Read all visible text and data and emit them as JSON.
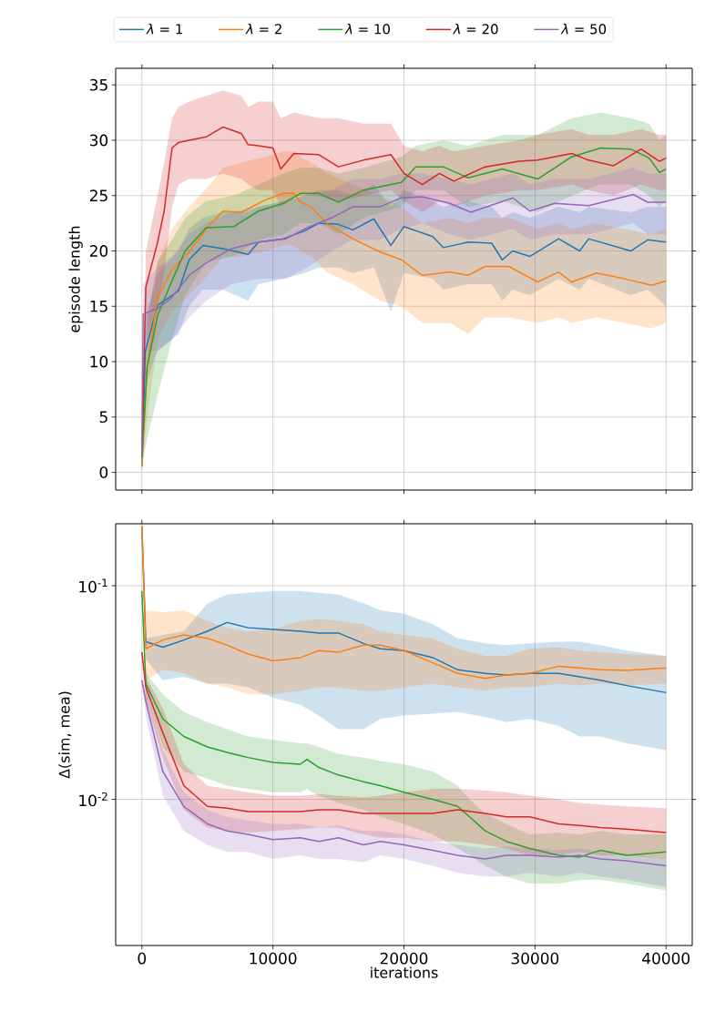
{
  "chart_data": [
    {
      "type": "line",
      "ylabel": "episode length",
      "xlim": [
        -2000,
        42000
      ],
      "ylim": [
        -1.6,
        36.5
      ],
      "xticks": [
        0,
        10000,
        20000,
        30000,
        40000
      ],
      "yticks": [
        0,
        5,
        10,
        15,
        20,
        25,
        30,
        35
      ],
      "tick_labels": "y",
      "grid": true,
      "legend": "top",
      "series": [
        {
          "name": "*λ* = 1",
          "color": "#1f77b4",
          "x": [
            0,
            270,
            1200,
            2800,
            3600,
            4650,
            6200,
            8100,
            8900,
            10800,
            12400,
            13500,
            15000,
            16100,
            17700,
            19000,
            20000,
            22200,
            23000,
            24900,
            26700,
            27500,
            28300,
            29600,
            31800,
            33400,
            34100,
            37300,
            38600,
            40000
          ],
          "values": [
            0.6,
            11.0,
            15.1,
            16.4,
            19.2,
            20.5,
            20.2,
            19.7,
            20.8,
            21.1,
            21.8,
            22.5,
            22.4,
            21.9,
            22.9,
            20.5,
            22.2,
            21.3,
            20.3,
            20.8,
            20.7,
            19.2,
            20.0,
            19.5,
            21.1,
            20.0,
            21.1,
            20.0,
            21.0,
            20.8
          ],
          "upper": [
            1,
            14,
            18,
            20,
            22,
            23,
            23.5,
            23.5,
            24,
            24.5,
            25,
            25.5,
            25.5,
            25,
            26,
            24,
            25.5,
            24.5,
            24,
            24.5,
            24,
            23,
            23.5,
            23,
            24,
            23.5,
            24,
            23.5,
            24,
            24
          ],
          "lower": [
            0.3,
            8,
            11,
            12.5,
            15,
            16.5,
            16.5,
            15.5,
            17,
            17.5,
            18,
            18.5,
            18.5,
            18,
            18.5,
            14.5,
            18,
            17.5,
            16.5,
            17,
            17,
            15.5,
            16.5,
            16,
            17.5,
            16.5,
            17.5,
            16,
            16.5,
            15
          ]
        },
        {
          "name": "*λ* = 2",
          "color": "#ff7f0e",
          "x": [
            0,
            400,
            1200,
            2300,
            3600,
            5200,
            6200,
            7600,
            9400,
            10800,
            11600,
            12100,
            12900,
            14200,
            16100,
            18200,
            19800,
            21400,
            23500,
            24900,
            26200,
            28000,
            30200,
            31800,
            32800,
            34700,
            36800,
            38900,
            40000
          ],
          "values": [
            0.5,
            9.5,
            15.8,
            18.3,
            19.9,
            22.4,
            23.6,
            23.5,
            24.6,
            25.2,
            25.2,
            24.4,
            24.0,
            22.4,
            21.1,
            19.9,
            19.2,
            17.8,
            18.1,
            17.8,
            18.6,
            18.6,
            17.2,
            18.1,
            17.2,
            18.0,
            17.5,
            16.9,
            17.3
          ],
          "upper": [
            1,
            13,
            19,
            22,
            24,
            26,
            27.5,
            28,
            28.5,
            29,
            29,
            28.5,
            28,
            27,
            26,
            25,
            24,
            22.5,
            23,
            22.5,
            23,
            23,
            22,
            22.5,
            22,
            22.5,
            22,
            21.5,
            22
          ],
          "lower": [
            0,
            5,
            12,
            14.5,
            16,
            18,
            19.5,
            19.5,
            20,
            20.5,
            20.5,
            20,
            19.5,
            18,
            17,
            15.5,
            15,
            13.5,
            13.5,
            12.5,
            14,
            14,
            13.5,
            14,
            13.5,
            14,
            13.5,
            13,
            13.5
          ]
        },
        {
          "name": "*λ* = 10",
          "color": "#2ca02c",
          "x": [
            0,
            400,
            1200,
            2300,
            3300,
            4900,
            7000,
            8900,
            10800,
            12100,
            13500,
            15000,
            16900,
            19800,
            20900,
            23000,
            24900,
            27500,
            30200,
            32800,
            35000,
            37300,
            38700,
            39500,
            40000
          ],
          "values": [
            1.3,
            9.5,
            14.2,
            17.3,
            20.0,
            22.1,
            22.2,
            23.6,
            24.3,
            25.2,
            25.2,
            24.4,
            25.5,
            26.2,
            27.6,
            27.6,
            26.6,
            27.4,
            26.5,
            28.5,
            29.3,
            29.2,
            28.4,
            27.1,
            27.4
          ],
          "upper": [
            2,
            14,
            19,
            21,
            23,
            24.5,
            25,
            26,
            27,
            27.5,
            27.5,
            27,
            27.5,
            28.5,
            29.5,
            30,
            29.5,
            30.5,
            30.5,
            32,
            32.5,
            32,
            31.5,
            30,
            30.5
          ],
          "lower": [
            0.5,
            3,
            7,
            12,
            16,
            19,
            19.5,
            21,
            21.5,
            22.5,
            22.5,
            21.5,
            23,
            24,
            25.5,
            25.5,
            24,
            24.5,
            23.5,
            25,
            26,
            26,
            25,
            24,
            24.5
          ]
        },
        {
          "name": "*λ* = 20",
          "color": "#d62728",
          "x": [
            0,
            300,
            1200,
            1700,
            2300,
            2800,
            3600,
            4900,
            6200,
            7600,
            8100,
            8900,
            10000,
            10600,
            11600,
            13500,
            15000,
            16900,
            19000,
            20000,
            21400,
            22700,
            23800,
            26200,
            28800,
            30200,
            32800,
            34100,
            36000,
            38100,
            39500,
            40000
          ],
          "values": [
            1.6,
            16.7,
            20.8,
            23.6,
            29.3,
            29.8,
            30.0,
            30.3,
            31.2,
            30.6,
            29.6,
            29.5,
            29.3,
            27.4,
            28.8,
            28.7,
            27.6,
            28.2,
            28.7,
            27.0,
            26.0,
            27.0,
            26.3,
            27.6,
            28.1,
            28.2,
            28.8,
            28.2,
            27.7,
            29.2,
            28.1,
            28.4
          ],
          "upper": [
            2,
            20,
            25,
            28,
            32,
            33,
            33.5,
            34,
            34.5,
            34,
            33,
            33.5,
            33.5,
            32,
            32.5,
            32,
            32,
            31.5,
            31.5,
            29.5,
            29,
            29.5,
            29,
            29.5,
            30,
            30.5,
            31,
            30.5,
            30.5,
            31,
            30.5,
            30.5
          ],
          "lower": [
            1,
            12,
            15,
            18,
            24,
            26,
            26.5,
            26.5,
            27,
            26.5,
            26,
            25.5,
            25.5,
            24,
            25,
            25,
            24.5,
            25,
            25.5,
            24.5,
            23.5,
            24.5,
            24,
            25,
            25.5,
            25.5,
            26,
            25.5,
            25,
            26,
            25.5,
            25.5
          ]
        },
        {
          "name": "*λ* = 50",
          "color": "#9467bd",
          "x": [
            0,
            100,
            1200,
            2300,
            3600,
            4900,
            6800,
            8900,
            11000,
            12600,
            14500,
            16100,
            18200,
            19800,
            21400,
            23500,
            25100,
            28300,
            29600,
            31500,
            34100,
            37500,
            38600,
            40000
          ],
          "values": [
            1.6,
            14.3,
            14.8,
            15.8,
            17.8,
            18.9,
            20.2,
            20.8,
            21.1,
            22.1,
            23.0,
            24.0,
            24.0,
            24.8,
            24.9,
            24.3,
            23.5,
            24.8,
            23.6,
            24.3,
            24.1,
            25.1,
            24.4,
            24.4
          ],
          "upper": [
            2,
            17,
            18.5,
            19.5,
            21.5,
            22.5,
            23.5,
            24,
            24.5,
            25,
            25.5,
            26.5,
            26.5,
            27,
            27,
            26.5,
            26,
            27,
            26,
            26.5,
            26.5,
            27.5,
            27,
            27
          ],
          "lower": [
            1,
            11,
            11,
            12,
            14,
            15.5,
            17,
            17.5,
            17.5,
            18.5,
            20,
            21,
            21,
            22,
            22.5,
            21.5,
            21,
            22,
            21,
            21.5,
            21.5,
            22.5,
            21.5,
            21.5
          ]
        }
      ]
    },
    {
      "type": "line",
      "xlabel": "iterations",
      "ylabel": "Δ(sim, mea)",
      "log": true,
      "xlim": [
        -2000,
        42000
      ],
      "ylim": [
        0.00207,
        0.195
      ],
      "xticks": [
        0,
        10000,
        20000,
        30000,
        40000
      ],
      "yticks": [
        {
          "value": 0.1,
          "label": "10$^{-1}$"
        },
        {
          "value": 0.01,
          "label": "10$^{-2}$"
        }
      ],
      "grid": true,
      "series": [
        {
          "color": "#1f77b4",
          "x": [
            0,
            300,
            1600,
            3200,
            5000,
            6500,
            8100,
            10000,
            12100,
            13500,
            15000,
            16900,
            18200,
            20000,
            22200,
            24100,
            26200,
            27800,
            29600,
            31800,
            33400,
            35000,
            37000,
            40000
          ],
          "values": [
            0.19,
            0.0547,
            0.0516,
            0.0557,
            0.0612,
            0.0673,
            0.0636,
            0.0624,
            0.0612,
            0.0601,
            0.0601,
            0.0537,
            0.0507,
            0.0497,
            0.0461,
            0.0404,
            0.0389,
            0.0382,
            0.0389,
            0.0389,
            0.0375,
            0.0361,
            0.0341,
            0.0316
          ],
          "upper": [
            0.19,
            0.0568,
            0.0589,
            0.0612,
            0.0828,
            0.091,
            0.0927,
            0.0945,
            0.0945,
            0.0927,
            0.091,
            0.0828,
            0.0768,
            0.0739,
            0.066,
            0.0568,
            0.0537,
            0.0527,
            0.0537,
            0.0547,
            0.0547,
            0.0527,
            0.0497,
            0.047
          ],
          "lower": [
            0.19,
            0.0453,
            0.0361,
            0.0375,
            0.0348,
            0.0348,
            0.0335,
            0.0299,
            0.0277,
            0.0247,
            0.0213,
            0.0213,
            0.0238,
            0.0247,
            0.0252,
            0.0257,
            0.0243,
            0.023,
            0.0238,
            0.0221,
            0.0197,
            0.0197,
            0.0183,
            0.017
          ]
        },
        {
          "color": "#ff7f0e",
          "x": [
            0,
            300,
            1600,
            3200,
            5000,
            6500,
            8100,
            10000,
            12100,
            13500,
            15000,
            16900,
            18200,
            20000,
            22200,
            24100,
            26200,
            27800,
            29600,
            31800,
            33400,
            35000,
            37000,
            40000
          ],
          "values": [
            0.19,
            0.0507,
            0.0557,
            0.0589,
            0.0568,
            0.0527,
            0.0479,
            0.0445,
            0.0461,
            0.0497,
            0.0489,
            0.0527,
            0.0527,
            0.0497,
            0.0436,
            0.0389,
            0.0368,
            0.0382,
            0.0389,
            0.042,
            0.0412,
            0.0404,
            0.0401,
            0.0412
          ],
          "upper": [
            0.19,
            0.0768,
            0.0753,
            0.0768,
            0.0686,
            0.0636,
            0.0612,
            0.0624,
            0.0686,
            0.0699,
            0.0686,
            0.066,
            0.0612,
            0.0589,
            0.0568,
            0.0507,
            0.047,
            0.047,
            0.0507,
            0.0516,
            0.0497,
            0.0489,
            0.0479,
            0.047
          ],
          "lower": [
            0.19,
            0.0361,
            0.0404,
            0.0389,
            0.0348,
            0.0335,
            0.031,
            0.031,
            0.0322,
            0.0335,
            0.0335,
            0.0322,
            0.0322,
            0.0335,
            0.0348,
            0.0335,
            0.0322,
            0.0335,
            0.0335,
            0.0348,
            0.0341,
            0.0348,
            0.0341,
            0.0348
          ]
        },
        {
          "color": "#2ca02c",
          "x": [
            0,
            300,
            1600,
            3200,
            5000,
            6500,
            8100,
            10000,
            12100,
            12600,
            13500,
            15000,
            16900,
            18200,
            20000,
            22200,
            24100,
            25000,
            26200,
            27800,
            29600,
            31800,
            33400,
            35000,
            37000,
            40000
          ],
          "values": [
            0.0945,
            0.0348,
            0.0238,
            0.0197,
            0.0176,
            0.0166,
            0.0157,
            0.0149,
            0.0146,
            0.0154,
            0.0141,
            0.013,
            0.0121,
            0.0116,
            0.0108,
            0.01,
            0.00927,
            0.00828,
            0.00712,
            0.00636,
            0.00589,
            0.00547,
            0.00537,
            0.00578,
            0.00547,
            0.00567
          ],
          "upper": [
            0.0945,
            0.0389,
            0.031,
            0.0257,
            0.023,
            0.0213,
            0.0197,
            0.019,
            0.0183,
            0.0183,
            0.0176,
            0.0163,
            0.0157,
            0.0151,
            0.0146,
            0.0135,
            0.0116,
            0.01,
            0.00859,
            0.00768,
            0.00686,
            0.007,
            0.00686,
            0.00712,
            0.00686,
            0.00686
          ],
          "lower": [
            0.0945,
            0.031,
            0.0176,
            0.0135,
            0.0125,
            0.0116,
            0.0112,
            0.0108,
            0.0108,
            0.0112,
            0.0104,
            0.00963,
            0.00893,
            0.00828,
            0.00768,
            0.00686,
            0.00589,
            0.00547,
            0.00489,
            0.00436,
            0.00404,
            0.00404,
            0.0042,
            0.0042,
            0.00404,
            0.00375
          ]
        },
        {
          "color": "#d62728",
          "x": [
            0,
            300,
            1600,
            3200,
            5000,
            6500,
            8100,
            10000,
            12100,
            13500,
            15000,
            16900,
            18200,
            20000,
            22200,
            24100,
            26200,
            27800,
            29600,
            31800,
            33400,
            35000,
            37000,
            40000
          ],
          "values": [
            0.0489,
            0.0335,
            0.0205,
            0.0116,
            0.00927,
            0.0091,
            0.00877,
            0.00877,
            0.00877,
            0.00893,
            0.00893,
            0.00859,
            0.00859,
            0.00859,
            0.00859,
            0.00893,
            0.00859,
            0.00828,
            0.00828,
            0.00768,
            0.00754,
            0.00739,
            0.00726,
            0.00699
          ],
          "upper": [
            0.0489,
            0.0375,
            0.0267,
            0.0146,
            0.0116,
            0.0112,
            0.0108,
            0.0104,
            0.0104,
            0.0106,
            0.0104,
            0.0102,
            0.0104,
            0.0108,
            0.0112,
            0.0112,
            0.011,
            0.0108,
            0.0104,
            0.01,
            0.00963,
            0.00945,
            0.00927,
            0.0091
          ],
          "lower": [
            0.0489,
            0.0288,
            0.0157,
            0.00893,
            0.00739,
            0.00712,
            0.007,
            0.00712,
            0.00726,
            0.00739,
            0.00739,
            0.00686,
            0.00661,
            0.00661,
            0.00636,
            0.00636,
            0.00612,
            0.00589,
            0.00547,
            0.00547,
            0.00567,
            0.00547,
            0.00547,
            0.00526
          ]
        },
        {
          "color": "#9467bd",
          "x": [
            0,
            300,
            1600,
            3200,
            5000,
            6500,
            8100,
            10000,
            12100,
            13500,
            15000,
            16900,
            18200,
            20000,
            22200,
            24100,
            26200,
            27800,
            29600,
            31800,
            33400,
            35000,
            37000,
            40000
          ],
          "values": [
            0.0361,
            0.0288,
            0.0135,
            0.00927,
            0.00768,
            0.00712,
            0.00686,
            0.00648,
            0.00661,
            0.00636,
            0.00661,
            0.00612,
            0.00636,
            0.00612,
            0.00578,
            0.00547,
            0.00526,
            0.00547,
            0.00547,
            0.00537,
            0.00547,
            0.00526,
            0.00516,
            0.00489
          ],
          "upper": [
            0.0361,
            0.0322,
            0.017,
            0.0108,
            0.00893,
            0.00828,
            0.00798,
            0.00768,
            0.00768,
            0.00739,
            0.00754,
            0.00712,
            0.00712,
            0.00686,
            0.00636,
            0.00612,
            0.00589,
            0.006,
            0.00589,
            0.00578,
            0.00589,
            0.00567,
            0.00557,
            0.00526
          ],
          "lower": [
            0.0361,
            0.0247,
            0.0104,
            0.00712,
            0.00612,
            0.00567,
            0.00567,
            0.00526,
            0.00547,
            0.00526,
            0.00526,
            0.00507,
            0.00547,
            0.00526,
            0.00489,
            0.00453,
            0.00436,
            0.00436,
            0.00453,
            0.00436,
            0.00453,
            0.00436,
            0.0042,
            0.00389
          ]
        }
      ]
    }
  ]
}
